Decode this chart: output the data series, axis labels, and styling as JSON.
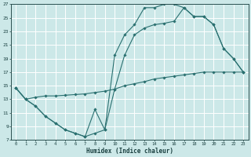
{
  "xlabel": "Humidex (Indice chaleur)",
  "bg_color": "#cce8e8",
  "grid_color": "#ffffff",
  "line_color": "#2a7070",
  "x_min": 0,
  "x_max": 23,
  "y_min": 7,
  "y_max": 27,
  "yticks": [
    7,
    9,
    11,
    13,
    15,
    17,
    19,
    21,
    23,
    25,
    27
  ],
  "xticks": [
    0,
    1,
    2,
    3,
    4,
    5,
    6,
    7,
    8,
    9,
    10,
    11,
    12,
    13,
    14,
    15,
    16,
    17,
    18,
    19,
    20,
    21,
    22,
    23
  ],
  "line1_x": [
    0,
    1,
    2,
    3,
    4,
    5,
    6,
    7,
    8,
    9,
    10,
    11,
    12,
    13,
    14,
    15,
    16,
    17,
    18,
    19,
    20,
    21,
    22,
    23
  ],
  "line1_y": [
    14.7,
    13.0,
    12.0,
    10.5,
    9.5,
    8.5,
    8.0,
    7.5,
    11.5,
    8.5,
    19.5,
    22.5,
    24.0,
    26.5,
    26.5,
    27.0,
    27.0,
    26.5,
    25.2,
    25.2,
    24.0,
    20.5,
    19.0,
    17.0
  ],
  "line2_x": [
    0,
    1,
    2,
    3,
    4,
    5,
    6,
    7,
    8,
    9,
    10,
    11,
    12,
    13,
    14,
    15,
    16,
    17,
    18,
    19,
    20,
    21,
    22,
    23
  ],
  "line2_y": [
    14.7,
    13.0,
    12.0,
    10.5,
    9.5,
    8.5,
    8.0,
    7.5,
    8.0,
    8.5,
    14.5,
    19.5,
    22.5,
    23.5,
    24.0,
    24.2,
    24.5,
    26.5,
    25.2,
    25.2,
    24.0,
    20.5,
    19.0,
    17.0
  ],
  "line3_x": [
    0,
    1,
    2,
    3,
    4,
    5,
    6,
    7,
    8,
    9,
    10,
    11,
    12,
    13,
    14,
    15,
    16,
    17,
    18,
    19,
    20,
    21,
    22,
    23
  ],
  "line3_y": [
    14.7,
    13.0,
    13.3,
    13.5,
    13.5,
    13.6,
    13.7,
    13.8,
    14.0,
    14.2,
    14.5,
    15.0,
    15.3,
    15.6,
    16.0,
    16.2,
    16.4,
    16.6,
    16.8,
    17.0,
    17.0,
    17.0,
    17.0,
    17.0
  ]
}
